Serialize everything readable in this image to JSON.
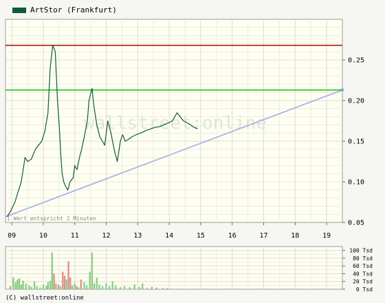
{
  "legend": {
    "label": "ArtStor (Frankfurt)",
    "color": "#0d5a3c"
  },
  "footer": {
    "copyright": "(C) wallstreet:online"
  },
  "watermark": "wallstreet:online",
  "note": "1 Wert entspricht 2 Minuten",
  "chart_data": [
    {
      "type": "line",
      "title": "",
      "xlabel": "",
      "ylabel": "",
      "x_ticks": [
        "09",
        "10",
        "11",
        "12",
        "13",
        "14",
        "15",
        "16",
        "17",
        "18",
        "19"
      ],
      "y_ticks": [
        "0.25",
        "0.20",
        "0.15",
        "0.10",
        "0.05"
      ],
      "ylim": [
        0.05,
        0.3
      ],
      "xlim": [
        8.8,
        19.5
      ],
      "grid": true,
      "legend_position": "top-left",
      "series": [
        {
          "name": "ArtStor (Frankfurt)",
          "color": "#0d5a3c",
          "x": [
            8.85,
            8.98,
            9.1,
            9.22,
            9.3,
            9.42,
            9.5,
            9.62,
            9.75,
            9.85,
            9.95,
            10.05,
            10.15,
            10.22,
            10.3,
            10.38,
            10.45,
            10.52,
            10.56,
            10.6,
            10.65,
            10.7,
            10.78,
            10.85,
            10.95,
            11.0,
            11.07,
            11.15,
            11.22,
            11.3,
            11.4,
            11.45,
            11.55,
            11.6,
            11.7,
            11.8,
            11.95,
            12.05,
            12.15,
            12.2,
            12.25,
            12.35,
            12.45,
            12.52,
            12.6,
            12.7,
            12.8,
            12.95,
            13.1,
            13.25,
            13.4,
            13.55,
            13.7,
            13.82,
            13.95,
            14.1,
            14.25,
            14.45,
            14.6,
            14.75,
            14.9
          ],
          "y": [
            0.057,
            0.065,
            0.075,
            0.09,
            0.1,
            0.13,
            0.125,
            0.128,
            0.14,
            0.145,
            0.15,
            0.162,
            0.185,
            0.24,
            0.268,
            0.26,
            0.2,
            0.16,
            0.13,
            0.11,
            0.1,
            0.095,
            0.09,
            0.1,
            0.105,
            0.12,
            0.115,
            0.13,
            0.14,
            0.155,
            0.175,
            0.2,
            0.215,
            0.195,
            0.17,
            0.155,
            0.145,
            0.175,
            0.16,
            0.15,
            0.14,
            0.125,
            0.15,
            0.158,
            0.15,
            0.152,
            0.155,
            0.158,
            0.16,
            0.163,
            0.165,
            0.167,
            0.168,
            0.17,
            0.172,
            0.175,
            0.185,
            0.175,
            0.172,
            0.168,
            0.165
          ]
        },
        {
          "name": "",
          "color": "#a32020",
          "x": [
            8.8,
            19.5
          ],
          "y": [
            0.268,
            0.268
          ]
        },
        {
          "name": "",
          "color": "#1cc21c",
          "x": [
            8.8,
            19.5
          ],
          "y": [
            0.213,
            0.213
          ]
        },
        {
          "name": "",
          "color": "#a8a8ea",
          "x": [
            8.8,
            19.5
          ],
          "y": [
            0.057,
            0.213
          ]
        }
      ]
    },
    {
      "type": "bar",
      "title": "",
      "xlabel": "",
      "ylabel": "",
      "y_ticks": [
        "100 Tsd",
        "80 Tsd",
        "60 Tsd",
        "40 Tsd",
        "20 Tsd",
        "0 Tsd"
      ],
      "ylim": [
        0,
        100
      ],
      "grid": true,
      "bars": [
        {
          "x": 8.95,
          "v": 8,
          "dir": "up"
        },
        {
          "x": 9.05,
          "v": 30,
          "dir": "up"
        },
        {
          "x": 9.12,
          "v": 18,
          "dir": "up"
        },
        {
          "x": 9.18,
          "v": 25,
          "dir": "up"
        },
        {
          "x": 9.24,
          "v": 28,
          "dir": "up"
        },
        {
          "x": 9.3,
          "v": 12,
          "dir": "up"
        },
        {
          "x": 9.36,
          "v": 22,
          "dir": "up"
        },
        {
          "x": 9.45,
          "v": 15,
          "dir": "up"
        },
        {
          "x": 9.55,
          "v": 10,
          "dir": "up"
        },
        {
          "x": 9.62,
          "v": 6,
          "dir": "up"
        },
        {
          "x": 9.72,
          "v": 20,
          "dir": "up"
        },
        {
          "x": 9.8,
          "v": 8,
          "dir": "up"
        },
        {
          "x": 9.9,
          "v": 5,
          "dir": "up"
        },
        {
          "x": 10.0,
          "v": 12,
          "dir": "up"
        },
        {
          "x": 10.1,
          "v": 9,
          "dir": "up"
        },
        {
          "x": 10.15,
          "v": 18,
          "dir": "up"
        },
        {
          "x": 10.22,
          "v": 22,
          "dir": "up"
        },
        {
          "x": 10.28,
          "v": 95,
          "dir": "up"
        },
        {
          "x": 10.34,
          "v": 40,
          "dir": "down"
        },
        {
          "x": 10.4,
          "v": 15,
          "dir": "up"
        },
        {
          "x": 10.48,
          "v": 12,
          "dir": "down"
        },
        {
          "x": 10.55,
          "v": 8,
          "dir": "up"
        },
        {
          "x": 10.62,
          "v": 45,
          "dir": "down"
        },
        {
          "x": 10.68,
          "v": 35,
          "dir": "down"
        },
        {
          "x": 10.74,
          "v": 25,
          "dir": "up"
        },
        {
          "x": 10.8,
          "v": 72,
          "dir": "down"
        },
        {
          "x": 10.86,
          "v": 30,
          "dir": "down"
        },
        {
          "x": 10.92,
          "v": 10,
          "dir": "up"
        },
        {
          "x": 11.0,
          "v": 15,
          "dir": "up"
        },
        {
          "x": 11.06,
          "v": 8,
          "dir": "down"
        },
        {
          "x": 11.12,
          "v": 5,
          "dir": "up"
        },
        {
          "x": 11.2,
          "v": 25,
          "dir": "down"
        },
        {
          "x": 11.3,
          "v": 18,
          "dir": "up"
        },
        {
          "x": 11.38,
          "v": 10,
          "dir": "up"
        },
        {
          "x": 11.48,
          "v": 45,
          "dir": "up"
        },
        {
          "x": 11.55,
          "v": 95,
          "dir": "up"
        },
        {
          "x": 11.62,
          "v": 15,
          "dir": "up"
        },
        {
          "x": 11.7,
          "v": 30,
          "dir": "up"
        },
        {
          "x": 11.78,
          "v": 12,
          "dir": "up"
        },
        {
          "x": 11.88,
          "v": 8,
          "dir": "up"
        },
        {
          "x": 12.0,
          "v": 15,
          "dir": "up"
        },
        {
          "x": 12.1,
          "v": 8,
          "dir": "up"
        },
        {
          "x": 12.2,
          "v": 20,
          "dir": "up"
        },
        {
          "x": 12.3,
          "v": 10,
          "dir": "up"
        },
        {
          "x": 12.45,
          "v": 5,
          "dir": "up"
        },
        {
          "x": 12.58,
          "v": 8,
          "dir": "up"
        },
        {
          "x": 12.75,
          "v": 5,
          "dir": "up"
        },
        {
          "x": 12.9,
          "v": 12,
          "dir": "up"
        },
        {
          "x": 13.05,
          "v": 6,
          "dir": "up"
        },
        {
          "x": 13.15,
          "v": 15,
          "dir": "up"
        },
        {
          "x": 13.3,
          "v": 4,
          "dir": "up"
        },
        {
          "x": 13.45,
          "v": 6,
          "dir": "down"
        },
        {
          "x": 13.6,
          "v": 4,
          "dir": "down"
        },
        {
          "x": 13.8,
          "v": 3,
          "dir": "down"
        },
        {
          "x": 13.95,
          "v": 3,
          "dir": "down"
        }
      ]
    }
  ]
}
